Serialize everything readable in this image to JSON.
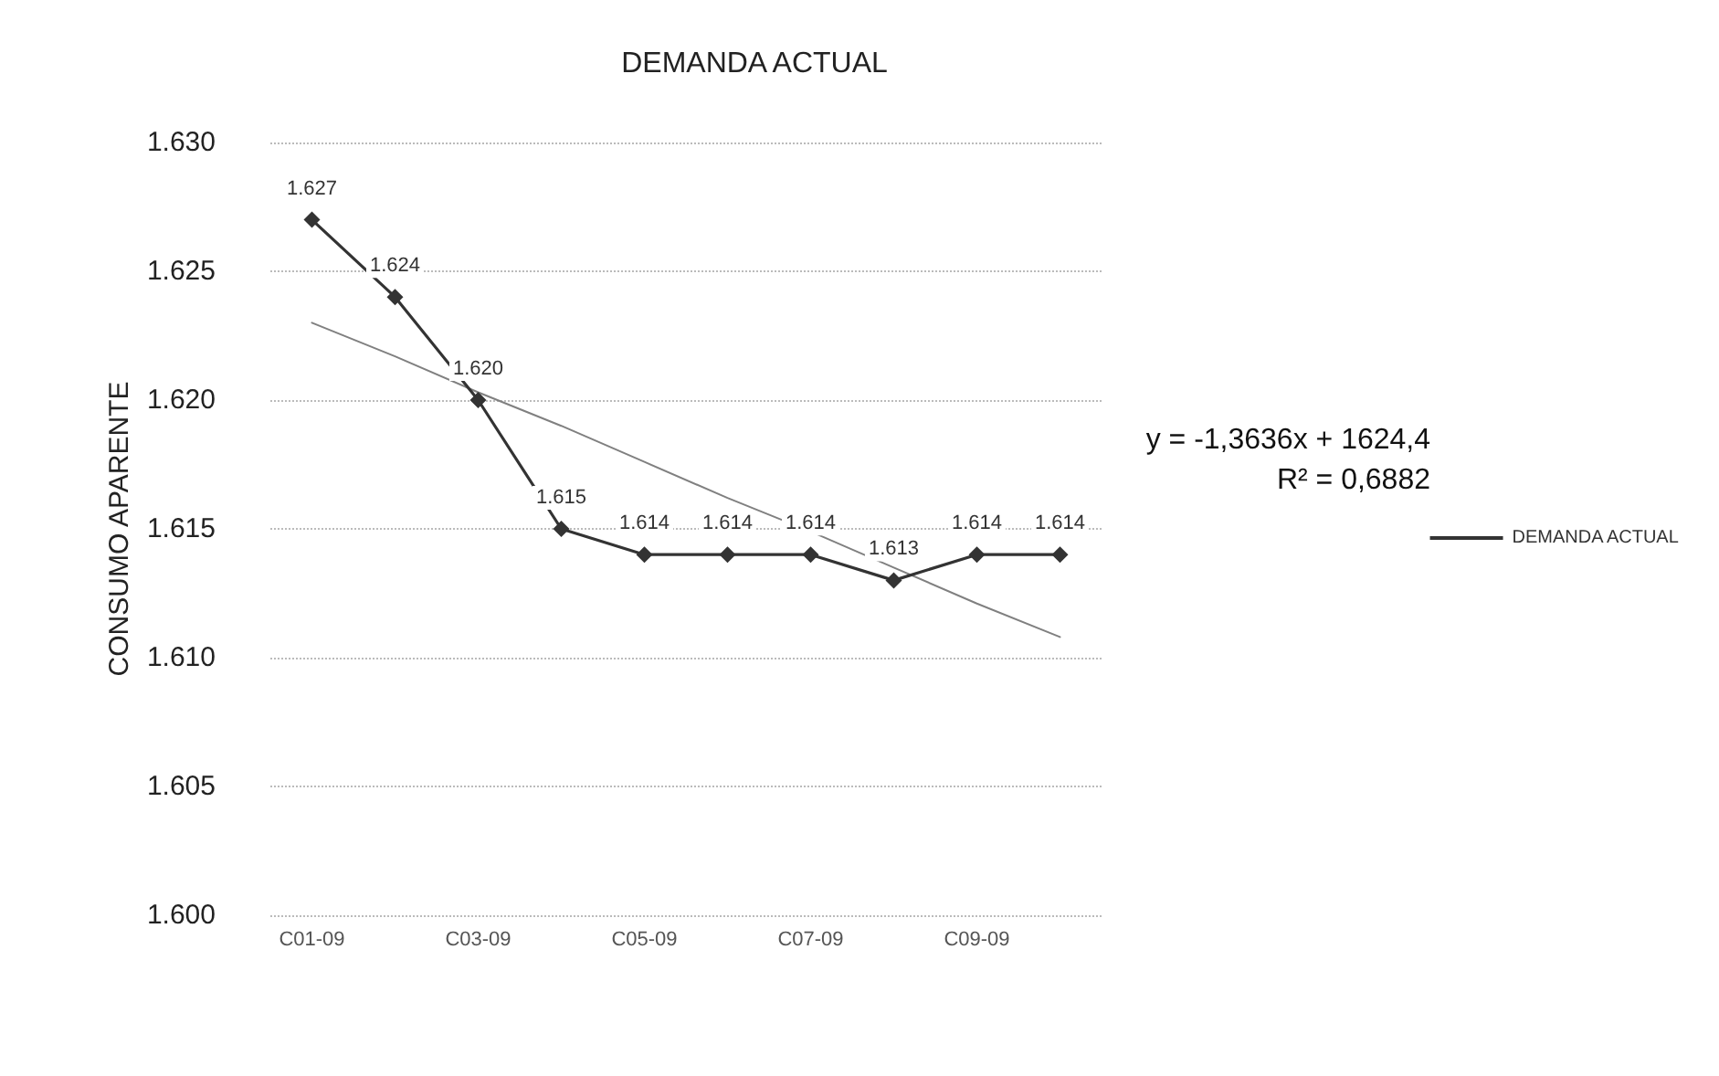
{
  "chart_data": {
    "type": "line",
    "title": "DEMANDA ACTUAL",
    "ylabel": "CONSUMO APARENTE",
    "categories": [
      "C01-09",
      null,
      "C03-09",
      null,
      "C05-09",
      null,
      "C07-09",
      null,
      "C09-09",
      null
    ],
    "series": [
      {
        "name": "DEMANDA ACTUAL",
        "color": "#333333",
        "values": [
          1627,
          1624,
          1620,
          1615,
          1614,
          1614,
          1614,
          1613,
          1614,
          1614
        ],
        "value_labels": [
          "1.627",
          "1.624",
          "1.620",
          "1.615",
          "1.614",
          "1.614",
          "1.614",
          "1.613",
          "1.614",
          "1.614"
        ],
        "marker": "diamond"
      },
      {
        "type": "line",
        "color": "#808080",
        "values": [
          1623.0,
          1621.7,
          1620.3,
          1619.0,
          1617.6,
          1616.2,
          1614.9,
          1613.5,
          1612.1,
          1610.8
        ],
        "marker": "none"
      }
    ],
    "ylim": [
      1600,
      1630
    ],
    "yticks": [
      {
        "value": 1600,
        "label": "1.600"
      },
      {
        "value": 1605,
        "label": "1.605"
      },
      {
        "value": 1610,
        "label": "1.610"
      },
      {
        "value": 1615,
        "label": "1.615"
      },
      {
        "value": 1620,
        "label": "1.620"
      },
      {
        "value": 1625,
        "label": "1.625"
      },
      {
        "value": 1630,
        "label": "1.630"
      }
    ],
    "annotations": [
      "y = -1,3636x + 1624,4",
      "R² = 0,6882"
    ],
    "grid": "y",
    "legend": "right",
    "line_style": "solid"
  }
}
